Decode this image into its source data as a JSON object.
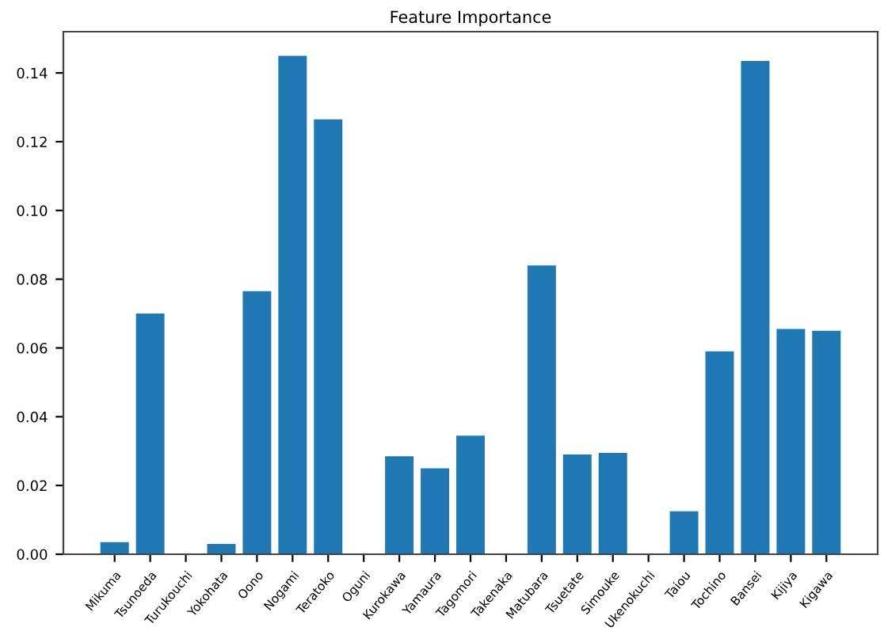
{
  "chart_data": {
    "type": "bar",
    "title": "Feature Importance",
    "categories": [
      "Mikuma",
      "Tsunoeda",
      "Turukouchi",
      "Yokohata",
      "Oono",
      "Nogami",
      "Teratoko",
      "Oguni",
      "Kurokawa",
      "Yamaura",
      "Tagomori",
      "Takenaka",
      "Matubara",
      "Tsuetate",
      "Simouke",
      "Ukenokuchi",
      "Taiou",
      "Tochino",
      "Bansei",
      "Kijiya",
      "Kigawa"
    ],
    "values": [
      0.0035,
      0.07,
      0,
      0.003,
      0.0765,
      0.145,
      0.1265,
      0,
      0.0285,
      0.025,
      0.0345,
      0,
      0.084,
      0.029,
      0.0295,
      0,
      0.0125,
      0.059,
      0.1435,
      0.0655,
      0.065
    ],
    "color": "#1f77b4",
    "ylim": [
      0,
      0.152
    ],
    "yticks": [
      {
        "value": 0,
        "label": "0.00"
      },
      {
        "value": 0.02,
        "label": "0.02"
      },
      {
        "value": 0.04,
        "label": "0.04"
      },
      {
        "value": 0.06,
        "label": "0.06"
      },
      {
        "value": 0.08,
        "label": "0.08"
      },
      {
        "value": 0.1,
        "label": "0.10"
      },
      {
        "value": 0.12,
        "label": "0.12"
      },
      {
        "value": 0.14,
        "label": "0.14"
      }
    ],
    "grid": false
  }
}
